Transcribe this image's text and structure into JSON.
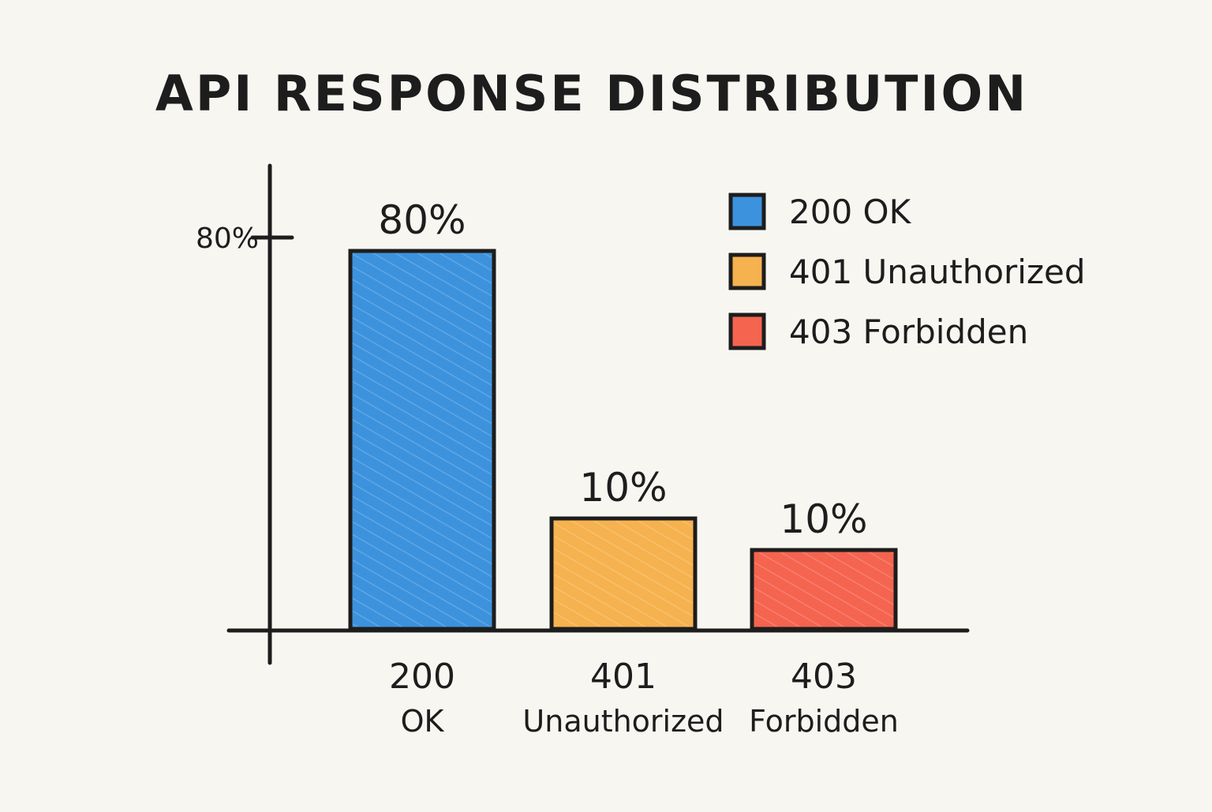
{
  "chart_data": {
    "type": "bar",
    "title": "API RESPONSE DISTRIBUTION",
    "categories": [
      {
        "code": "200",
        "name": "OK"
      },
      {
        "code": "401",
        "name": "Unauthorized"
      },
      {
        "code": "403",
        "name": "Forbidden"
      }
    ],
    "values": [
      80,
      10,
      10
    ],
    "value_labels": [
      "80%",
      "10%",
      "10%"
    ],
    "y_ticks": [
      {
        "value": 80,
        "label": "80%"
      }
    ],
    "ylim": [
      0,
      100
    ],
    "grid": false,
    "legend": {
      "placement": "top-right",
      "entries": [
        "200 OK",
        "401 Unauthorized",
        "403 Forbidden"
      ]
    },
    "colors": [
      "#3d92dd",
      "#f6b24f",
      "#f4644f"
    ],
    "outline_color": "#1d1d1d"
  }
}
